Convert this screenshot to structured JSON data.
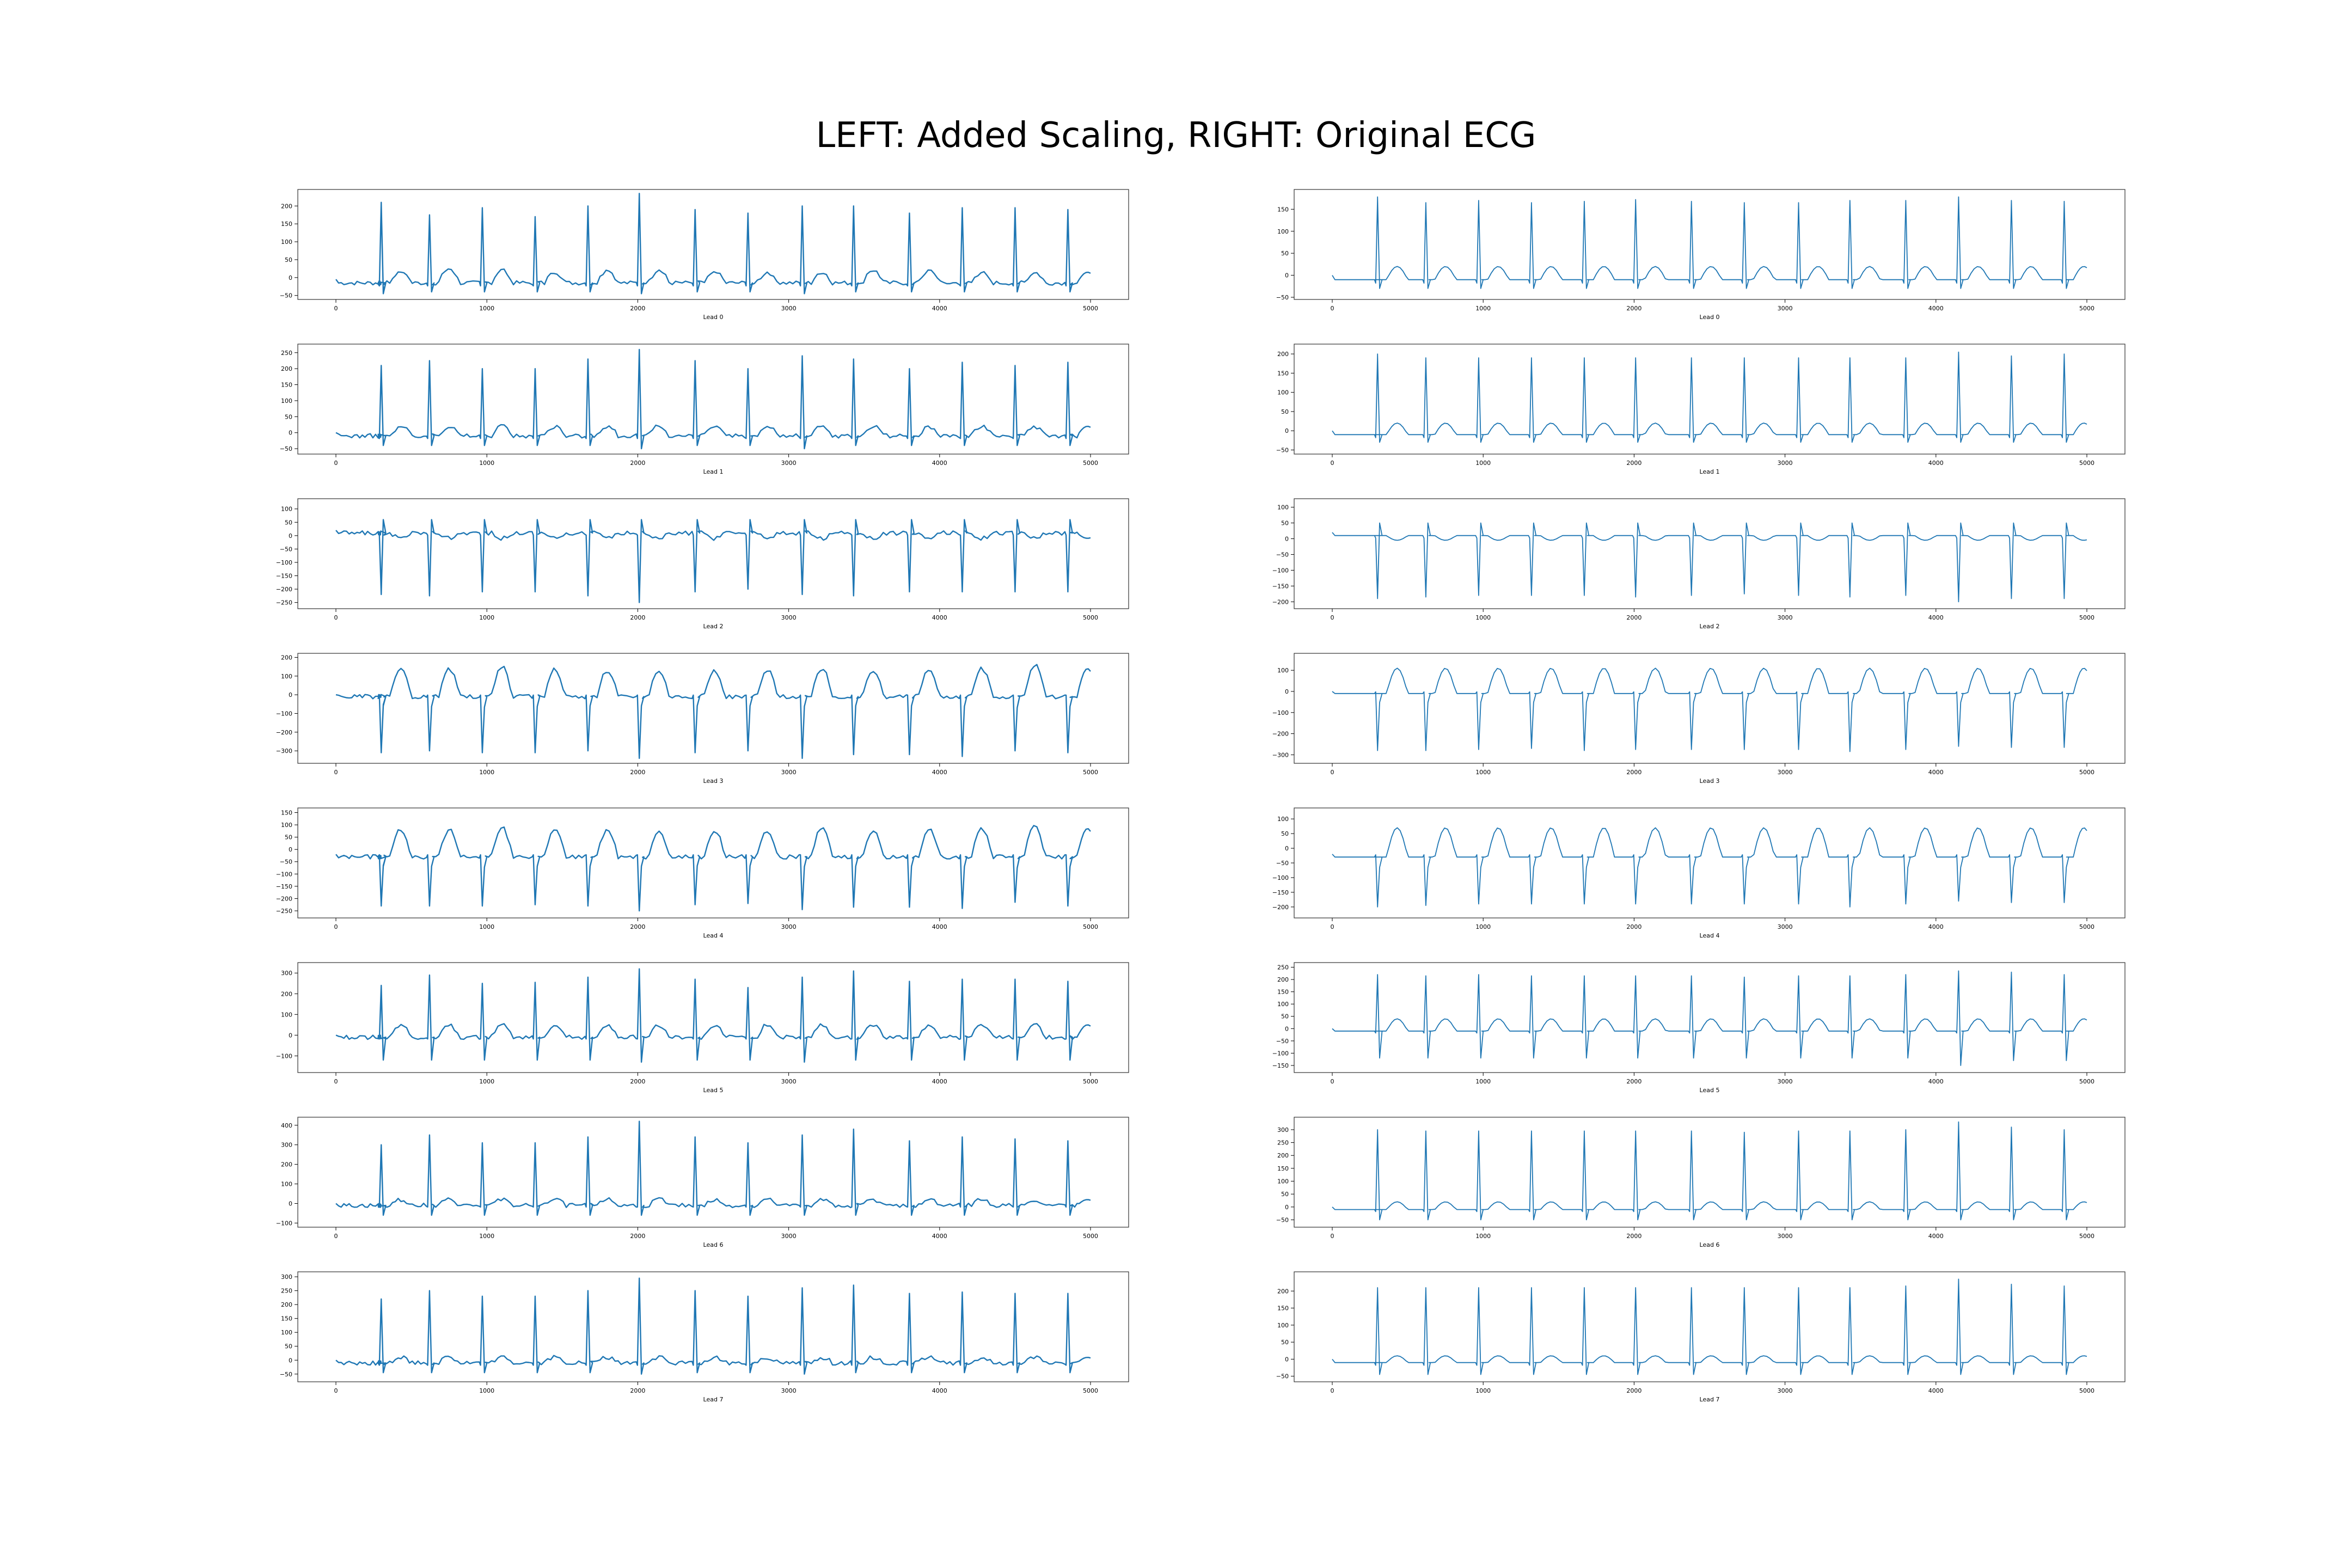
{
  "figure": {
    "title": "LEFT: Added Scaling, RIGHT: Original ECG",
    "line_color": "#1f77b4"
  },
  "chart_data": [
    {
      "type": "line",
      "column": "left",
      "row": 0,
      "xlabel": "Lead 0",
      "xlim": [
        0,
        5000
      ],
      "ylim": [
        -55,
        240
      ],
      "xticks": [
        0,
        1000,
        2000,
        3000,
        4000,
        5000
      ],
      "yticks": [
        -50,
        0,
        50,
        100,
        150,
        200
      ],
      "baseline": -15,
      "r_peaks": [
        200,
        210,
        175,
        195,
        170,
        200,
        235,
        190,
        180,
        200,
        200,
        180,
        195,
        195,
        190
      ],
      "s_dips": [
        -45,
        -40,
        -40,
        -40,
        -40,
        -40,
        -45,
        -40,
        -40,
        -45,
        -40,
        -40,
        -40,
        -40,
        -40
      ],
      "t_waves": [
        30,
        35,
        40,
        35,
        30,
        35,
        35,
        30,
        30,
        30,
        35,
        35,
        30,
        30,
        30
      ],
      "noisy": true
    },
    {
      "type": "line",
      "column": "right",
      "row": 0,
      "xlabel": "Lead 0",
      "xlim": [
        0,
        5000
      ],
      "ylim": [
        -50,
        190
      ],
      "xticks": [
        0,
        1000,
        2000,
        3000,
        4000,
        5000
      ],
      "yticks": [
        -50,
        0,
        50,
        100,
        150
      ],
      "baseline": -10,
      "r_peaks": [
        178,
        170,
        165,
        170,
        165,
        168,
        172,
        168,
        165,
        165,
        170,
        170,
        178,
        170,
        168
      ],
      "s_dips": [
        -30,
        -30,
        -30,
        -30,
        -30,
        -30,
        -30,
        -30,
        -30,
        -30,
        -30,
        -30,
        -30,
        -30,
        -30
      ],
      "t_waves": [
        30,
        30,
        30,
        30,
        30,
        30,
        30,
        30,
        30,
        30,
        30,
        30,
        30,
        30,
        30
      ],
      "noisy": false
    },
    {
      "type": "line",
      "column": "left",
      "row": 1,
      "xlabel": "Lead 1",
      "xlim": [
        0,
        5000
      ],
      "ylim": [
        -60,
        270
      ],
      "xticks": [
        0,
        1000,
        2000,
        3000,
        4000,
        5000
      ],
      "yticks": [
        -50,
        0,
        50,
        100,
        150,
        200,
        250
      ],
      "baseline": -10,
      "r_peaks": [
        210,
        200,
        225,
        200,
        200,
        230,
        260,
        225,
        200,
        240,
        230,
        200,
        220,
        210,
        220
      ],
      "s_dips": [
        -40,
        -40,
        -40,
        -40,
        -40,
        -40,
        -50,
        -40,
        -40,
        -50,
        -40,
        -40,
        -40,
        -40,
        -40
      ],
      "t_waves": [
        30,
        30,
        30,
        30,
        30,
        30,
        30,
        30,
        30,
        30,
        30,
        30,
        30,
        30,
        30
      ],
      "noisy": true
    },
    {
      "type": "line",
      "column": "right",
      "row": 1,
      "xlabel": "Lead 1",
      "xlim": [
        0,
        5000
      ],
      "ylim": [
        -55,
        220
      ],
      "xticks": [
        0,
        1000,
        2000,
        3000,
        4000,
        5000
      ],
      "yticks": [
        -50,
        0,
        50,
        100,
        150,
        200
      ],
      "baseline": -10,
      "r_peaks": [
        200,
        190,
        190,
        190,
        190,
        190,
        190,
        190,
        190,
        190,
        190,
        190,
        205,
        195,
        200
      ],
      "s_dips": [
        -30,
        -30,
        -30,
        -30,
        -30,
        -30,
        -30,
        -30,
        -30,
        -30,
        -30,
        -30,
        -30,
        -30,
        -30
      ],
      "t_waves": [
        30,
        30,
        30,
        30,
        30,
        30,
        30,
        30,
        30,
        30,
        30,
        30,
        30,
        30,
        30
      ],
      "noisy": false
    },
    {
      "type": "line",
      "column": "left",
      "row": 2,
      "xlabel": "Lead 2",
      "xlim": [
        0,
        5000
      ],
      "ylim": [
        -265,
        130
      ],
      "xticks": [
        0,
        1000,
        2000,
        3000,
        4000,
        5000
      ],
      "yticks": [
        -250,
        -200,
        -150,
        -100,
        -50,
        0,
        50,
        100
      ],
      "baseline": 10,
      "r_peaks": [
        -220,
        -205,
        -225,
        -210,
        -210,
        -225,
        -250,
        -210,
        -200,
        -220,
        -225,
        -210,
        -210,
        -210,
        -210
      ],
      "s_dips": [
        60,
        60,
        60,
        60,
        60,
        60,
        60,
        60,
        60,
        60,
        60,
        60,
        60,
        60,
        60
      ],
      "t_waves": [
        -20,
        -20,
        -20,
        -20,
        -20,
        -20,
        -20,
        -20,
        -20,
        -20,
        -20,
        -20,
        -20,
        -20,
        -20
      ],
      "noisy": true
    },
    {
      "type": "line",
      "column": "right",
      "row": 2,
      "xlabel": "Lead 2",
      "xlim": [
        0,
        5000
      ],
      "ylim": [
        -215,
        120
      ],
      "xticks": [
        0,
        1000,
        2000,
        3000,
        4000,
        5000
      ],
      "yticks": [
        -200,
        -150,
        -100,
        -50,
        0,
        50,
        100
      ],
      "baseline": 10,
      "r_peaks": [
        -190,
        -180,
        -185,
        -180,
        -180,
        -180,
        -185,
        -180,
        -175,
        -180,
        -185,
        -180,
        -200,
        -190,
        -190
      ],
      "s_dips": [
        50,
        50,
        50,
        50,
        50,
        50,
        50,
        50,
        50,
        50,
        50,
        50,
        50,
        50,
        50
      ],
      "t_waves": [
        -15,
        -15,
        -15,
        -15,
        -15,
        -15,
        -15,
        -15,
        -15,
        -15,
        -15,
        -15,
        -15,
        -15,
        -15
      ],
      "noisy": false
    },
    {
      "type": "line",
      "column": "left",
      "row": 3,
      "xlabel": "Lead 3",
      "xlim": [
        0,
        5000
      ],
      "ylim": [
        -355,
        210
      ],
      "xticks": [
        0,
        1000,
        2000,
        3000,
        4000,
        5000
      ],
      "yticks": [
        -300,
        -200,
        -100,
        0,
        100,
        200
      ],
      "baseline": -10,
      "r_peaks": [
        -310,
        -310,
        -300,
        -310,
        -310,
        -300,
        -340,
        -310,
        -300,
        -340,
        -320,
        -320,
        -330,
        -300,
        -310
      ],
      "s_dips": [
        120,
        140,
        150,
        160,
        150,
        140,
        140,
        140,
        140,
        150,
        140,
        140,
        150,
        170,
        150
      ],
      "t_waves": [
        120,
        140,
        150,
        160,
        150,
        140,
        140,
        140,
        140,
        150,
        140,
        140,
        150,
        170,
        150
      ],
      "noisy": true,
      "inverted": true
    },
    {
      "type": "line",
      "column": "right",
      "row": 3,
      "xlabel": "Lead 3",
      "xlim": [
        0,
        5000
      ],
      "ylim": [
        -330,
        170
      ],
      "xticks": [
        0,
        1000,
        2000,
        3000,
        4000,
        5000
      ],
      "yticks": [
        -300,
        -200,
        -100,
        0,
        100
      ],
      "baseline": -10,
      "r_peaks": [
        -280,
        -275,
        -280,
        -275,
        -270,
        -280,
        -275,
        -275,
        -275,
        -275,
        -285,
        -275,
        -260,
        -265,
        -265
      ],
      "s_dips": [
        120,
        120,
        120,
        120,
        120,
        120,
        120,
        120,
        120,
        120,
        120,
        120,
        120,
        120,
        120
      ],
      "t_waves": [
        120,
        120,
        120,
        120,
        120,
        120,
        120,
        120,
        120,
        120,
        120,
        120,
        120,
        120,
        120
      ],
      "noisy": false,
      "inverted": true
    },
    {
      "type": "line",
      "column": "left",
      "row": 4,
      "xlabel": "Lead 4",
      "xlim": [
        0,
        5000
      ],
      "ylim": [
        -270,
        160
      ],
      "xticks": [
        0,
        1000,
        2000,
        3000,
        4000,
        5000
      ],
      "yticks": [
        -250,
        -200,
        -150,
        -100,
        -50,
        0,
        50,
        100,
        150
      ],
      "baseline": -30,
      "r_peaks": [
        -230,
        -220,
        -230,
        -230,
        -225,
        -230,
        -250,
        -225,
        -220,
        -245,
        -235,
        -235,
        -240,
        -215,
        -230
      ],
      "s_dips": [
        100,
        110,
        110,
        120,
        110,
        110,
        110,
        105,
        105,
        115,
        110,
        110,
        115,
        130,
        115
      ],
      "t_waves": [
        100,
        110,
        110,
        120,
        110,
        110,
        110,
        105,
        105,
        115,
        110,
        110,
        115,
        130,
        115
      ],
      "noisy": true,
      "inverted": true
    },
    {
      "type": "line",
      "column": "right",
      "row": 4,
      "xlabel": "Lead 4",
      "xlim": [
        0,
        5000
      ],
      "ylim": [
        -230,
        130
      ],
      "xticks": [
        0,
        1000,
        2000,
        3000,
        4000,
        5000
      ],
      "yticks": [
        -200,
        -150,
        -100,
        -50,
        0,
        50,
        100
      ],
      "baseline": -30,
      "r_peaks": [
        -200,
        -195,
        -195,
        -190,
        -190,
        -190,
        -190,
        -190,
        -190,
        -190,
        -200,
        -190,
        -180,
        -185,
        -185
      ],
      "s_dips": [
        100,
        100,
        100,
        100,
        100,
        100,
        100,
        100,
        100,
        100,
        100,
        100,
        100,
        100,
        100
      ],
      "t_waves": [
        100,
        100,
        100,
        100,
        100,
        100,
        100,
        100,
        100,
        100,
        100,
        100,
        100,
        100,
        100
      ],
      "noisy": false,
      "inverted": true
    },
    {
      "type": "line",
      "column": "left",
      "row": 5,
      "xlabel": "Lead 5",
      "xlim": [
        0,
        5000
      ],
      "ylim": [
        -170,
        340
      ],
      "xticks": [
        0,
        1000,
        2000,
        3000,
        4000,
        5000
      ],
      "yticks": [
        -100,
        0,
        100,
        200,
        300
      ],
      "baseline": -10,
      "r_peaks": [
        240,
        220,
        290,
        250,
        255,
        280,
        320,
        270,
        230,
        280,
        310,
        260,
        270,
        270,
        260
      ],
      "s_dips": [
        -120,
        -120,
        -120,
        -120,
        -120,
        -120,
        -130,
        -120,
        -120,
        -130,
        -120,
        -120,
        -120,
        -120,
        -120
      ],
      "t_waves": [
        50,
        60,
        60,
        60,
        60,
        60,
        60,
        60,
        60,
        60,
        60,
        60,
        60,
        60,
        60
      ],
      "noisy": true
    },
    {
      "type": "line",
      "column": "right",
      "row": 5,
      "xlabel": "Lead 5",
      "xlim": [
        0,
        5000
      ],
      "ylim": [
        -170,
        260
      ],
      "xticks": [
        0,
        1000,
        2000,
        3000,
        4000,
        5000
      ],
      "yticks": [
        -150,
        -100,
        -50,
        0,
        50,
        100,
        150,
        200,
        250
      ],
      "baseline": -10,
      "r_peaks": [
        220,
        210,
        215,
        220,
        215,
        215,
        215,
        215,
        210,
        215,
        215,
        220,
        235,
        230,
        220
      ],
      "s_dips": [
        -120,
        -120,
        -120,
        -120,
        -120,
        -120,
        -120,
        -120,
        -120,
        -120,
        -120,
        -120,
        -150,
        -130,
        -130
      ],
      "t_waves": [
        50,
        50,
        50,
        50,
        50,
        50,
        50,
        50,
        50,
        50,
        50,
        50,
        50,
        50,
        50
      ],
      "noisy": false
    },
    {
      "type": "line",
      "column": "right",
      "row": 6,
      "xlabel": "Lead 6",
      "xlim": [
        0,
        5000
      ],
      "ylim": [
        -70,
        340
      ],
      "xticks": [
        0,
        1000,
        2000,
        3000,
        4000,
        5000
      ],
      "yticks": [
        -50,
        0,
        50,
        100,
        150,
        200,
        250,
        300
      ],
      "baseline": -10,
      "r_peaks": [
        300,
        295,
        295,
        295,
        295,
        295,
        295,
        295,
        290,
        295,
        295,
        300,
        330,
        310,
        300
      ],
      "s_dips": [
        -50,
        -50,
        -50,
        -50,
        -50,
        -50,
        -50,
        -50,
        -50,
        -50,
        -50,
        -50,
        -50,
        -50,
        -50
      ],
      "t_waves": [
        30,
        30,
        30,
        30,
        30,
        30,
        30,
        30,
        30,
        30,
        30,
        30,
        30,
        30,
        30
      ],
      "noisy": false
    },
    {
      "type": "line",
      "column": "left",
      "row": 6,
      "xlabel": "Lead 6",
      "xlim": [
        0,
        5000
      ],
      "ylim": [
        -110,
        430
      ],
      "xticks": [
        0,
        1000,
        2000,
        3000,
        4000,
        5000
      ],
      "yticks": [
        -100,
        0,
        100,
        200,
        300,
        400
      ],
      "baseline": -10,
      "r_peaks": [
        300,
        290,
        350,
        310,
        310,
        340,
        420,
        340,
        310,
        350,
        380,
        320,
        340,
        330,
        320
      ],
      "s_dips": [
        -60,
        -60,
        -60,
        -60,
        -60,
        -60,
        -60,
        -60,
        -60,
        -60,
        -60,
        -60,
        -60,
        -60,
        -60
      ],
      "t_waves": [
        30,
        30,
        30,
        30,
        30,
        30,
        30,
        30,
        30,
        30,
        30,
        30,
        30,
        30,
        30
      ],
      "noisy": true
    },
    {
      "type": "line",
      "column": "left",
      "row": 7,
      "xlabel": "Lead 7",
      "xlim": [
        0,
        5000
      ],
      "ylim": [
        -70,
        310
      ],
      "xticks": [
        0,
        1000,
        2000,
        3000,
        4000,
        5000
      ],
      "yticks": [
        -50,
        0,
        50,
        100,
        150,
        200,
        250,
        300
      ],
      "baseline": -10,
      "r_peaks": [
        220,
        220,
        250,
        230,
        230,
        250,
        295,
        250,
        230,
        260,
        270,
        240,
        245,
        240,
        240
      ],
      "s_dips": [
        -45,
        -45,
        -45,
        -45,
        -45,
        -45,
        -50,
        -45,
        -45,
        -50,
        -45,
        -45,
        -45,
        -45,
        -45
      ],
      "t_waves": [
        20,
        20,
        20,
        20,
        20,
        20,
        20,
        20,
        20,
        20,
        20,
        20,
        20,
        20,
        20
      ],
      "noisy": true
    },
    {
      "type": "line",
      "column": "right",
      "row": 7,
      "xlabel": "Lead 7",
      "xlim": [
        0,
        5000
      ],
      "ylim": [
        -60,
        250
      ],
      "xticks": [
        0,
        1000,
        2000,
        3000,
        4000,
        5000
      ],
      "yticks": [
        -50,
        0,
        50,
        100,
        150,
        200
      ],
      "baseline": -10,
      "r_peaks": [
        210,
        210,
        210,
        210,
        210,
        210,
        210,
        210,
        210,
        210,
        210,
        215,
        235,
        220,
        215
      ],
      "s_dips": [
        -45,
        -45,
        -45,
        -45,
        -45,
        -45,
        -45,
        -45,
        -45,
        -45,
        -45,
        -45,
        -45,
        -45,
        -45
      ],
      "t_waves": [
        20,
        20,
        20,
        20,
        20,
        20,
        20,
        20,
        20,
        20,
        20,
        20,
        20,
        20,
        20
      ],
      "noisy": false
    }
  ]
}
